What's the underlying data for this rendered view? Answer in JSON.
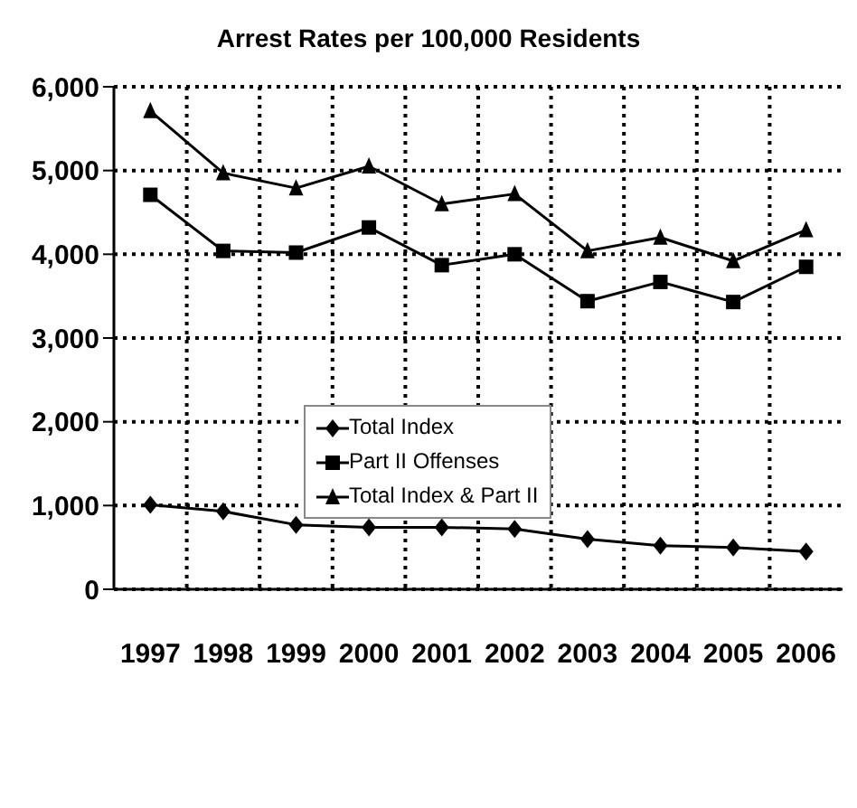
{
  "chart_data": {
    "type": "line",
    "title": "Arrest Rates per 100,000 Residents",
    "categories": [
      "1997",
      "1998",
      "1999",
      "2000",
      "2001",
      "2002",
      "2003",
      "2004",
      "2005",
      "2006"
    ],
    "series": [
      {
        "name": "Total Index",
        "color": "#000000",
        "marker": "diamond",
        "values": [
          1010,
          930,
          770,
          740,
          740,
          720,
          600,
          520,
          500,
          450
        ]
      },
      {
        "name": "Part II Offenses",
        "color": "#000000",
        "marker": "square",
        "values": [
          4710,
          4040,
          4020,
          4320,
          3870,
          4000,
          3440,
          3670,
          3430,
          3850
        ]
      },
      {
        "name": "Total Index & Part II",
        "color": "#000000",
        "marker": "triangle",
        "values": [
          5710,
          4970,
          4790,
          5050,
          4600,
          4720,
          4040,
          4200,
          3920,
          4290
        ]
      }
    ],
    "ylim": [
      0,
      6000
    ],
    "yticks": [
      {
        "value": 0,
        "label": "0"
      },
      {
        "value": 1000,
        "label": "1,000"
      },
      {
        "value": 2000,
        "label": "2,000"
      },
      {
        "value": 3000,
        "label": "3,000"
      },
      {
        "value": 4000,
        "label": "4,000"
      },
      {
        "value": 5000,
        "label": "5,000"
      },
      {
        "value": 6000,
        "label": "6,000"
      }
    ],
    "grid": true,
    "legend": "center left",
    "line_style": "solid"
  }
}
